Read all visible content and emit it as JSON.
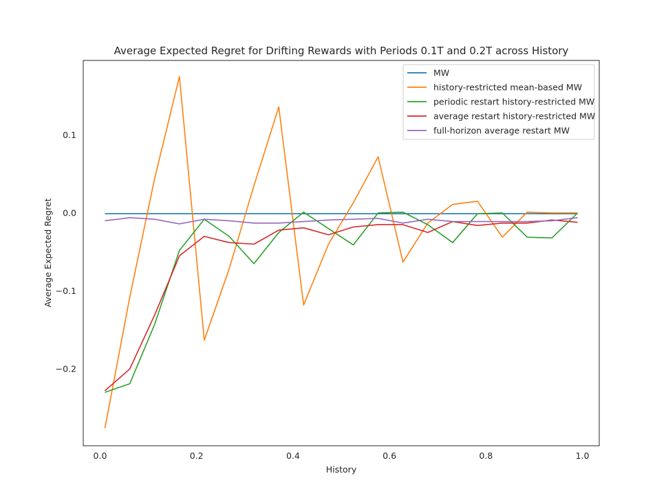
{
  "chart_data": {
    "type": "line",
    "title": "Average Expected Regret for Drifting Rewards with Periods 0.1T and 0.2T across History",
    "xlabel": "History",
    "ylabel": "Average Expected Regret",
    "xlim": [
      -0.035,
      1.035
    ],
    "ylim": [
      -0.2985,
      0.1956
    ],
    "xticks": [
      0.0,
      0.2,
      0.4,
      0.6,
      0.8,
      1.0
    ],
    "xtick_labels": [
      "0.0",
      "0.2",
      "0.4",
      "0.6",
      "0.8",
      "1.0"
    ],
    "yticks": [
      -0.2,
      -0.1,
      0.0,
      0.1
    ],
    "ytick_labels": [
      "−0.2",
      "−0.1",
      "0.0",
      "0.1"
    ],
    "grid": false,
    "legend_position": "top-right",
    "x": [
      0.01,
      0.0615,
      0.113,
      0.1645,
      0.216,
      0.2675,
      0.319,
      0.3705,
      0.422,
      0.4735,
      0.525,
      0.5765,
      0.628,
      0.6795,
      0.731,
      0.7825,
      0.834,
      0.8855,
      0.937,
      0.99
    ],
    "series": [
      {
        "name": "MW",
        "color": "#1f77b4",
        "values": [
          -0.001,
          -0.001,
          -0.001,
          -0.001,
          -0.001,
          -0.001,
          -0.001,
          -0.001,
          -0.001,
          -0.001,
          -0.001,
          -0.001,
          -0.001,
          -0.001,
          -0.001,
          -0.001,
          -0.001,
          -0.001,
          -0.001,
          -0.001
        ]
      },
      {
        "name": "history-restricted mean-based MW",
        "color": "#ff7f0e",
        "values": [
          -0.276,
          -0.108,
          0.044,
          0.175,
          -0.163,
          -0.072,
          0.035,
          0.136,
          -0.118,
          -0.04,
          0.013,
          0.072,
          -0.063,
          -0.013,
          0.011,
          0.015,
          -0.031,
          0.001,
          0.0,
          0.0
        ]
      },
      {
        "name": "periodic restart history-restricted MW",
        "color": "#2ca02c",
        "values": [
          -0.23,
          -0.219,
          -0.143,
          -0.048,
          -0.008,
          -0.03,
          -0.065,
          -0.025,
          0.001,
          -0.02,
          -0.041,
          0.0,
          0.001,
          -0.015,
          -0.038,
          -0.001,
          0.0,
          -0.031,
          -0.032,
          0.0
        ]
      },
      {
        "name": "average restart history-restricted MW",
        "color": "#d62728",
        "values": [
          -0.228,
          -0.2,
          -0.131,
          -0.055,
          -0.03,
          -0.038,
          -0.04,
          -0.022,
          -0.019,
          -0.028,
          -0.018,
          -0.015,
          -0.015,
          -0.025,
          -0.011,
          -0.016,
          -0.013,
          -0.013,
          -0.009,
          -0.012
        ]
      },
      {
        "name": "full-horizon average restart MW",
        "color": "#9467bd",
        "values": [
          -0.01,
          -0.006,
          -0.008,
          -0.014,
          -0.008,
          -0.01,
          -0.013,
          -0.013,
          -0.011,
          -0.009,
          -0.008,
          -0.007,
          -0.013,
          -0.008,
          -0.011,
          -0.011,
          -0.011,
          -0.011,
          -0.01,
          -0.006
        ]
      }
    ]
  }
}
